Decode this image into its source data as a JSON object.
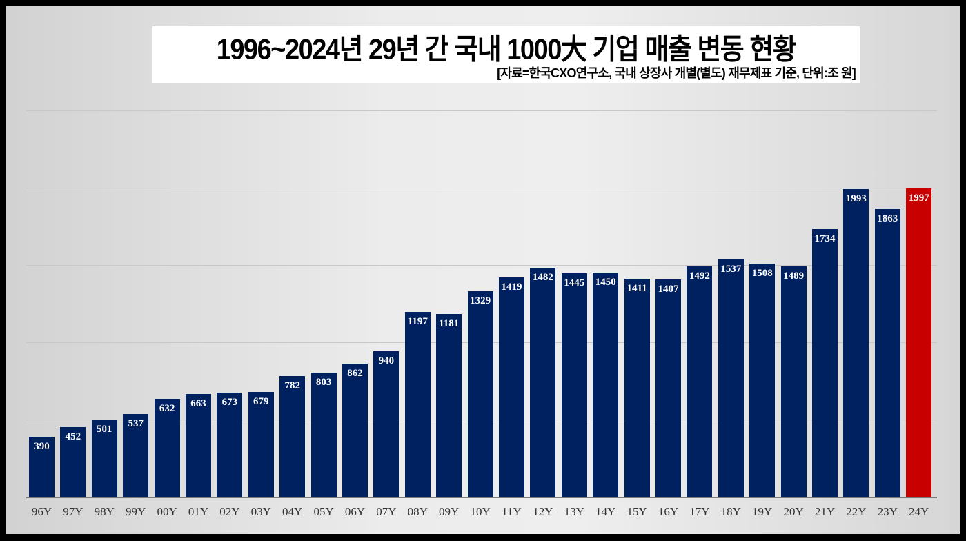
{
  "header": {
    "title": "1996~2024년 29년 간 국내 1000大 기업 매출 변동 현황",
    "subtitle": "[자료=한국CXO연구소, 국내 상장사 개별(별도) 재무제표 기준, 단위:조 원]"
  },
  "colors": {
    "bar": "#00215f",
    "highlight": "#c80000",
    "value_label": "#ffffff"
  },
  "chart_data": {
    "type": "bar",
    "title": "1996~2024년 29년 간 국내 1000大 기업 매출 변동 현황",
    "subtitle": "[자료=한국CXO연구소, 국내 상장사 개별(별도) 재무제표 기준, 단위:조 원]",
    "xlabel": "",
    "ylabel": "",
    "unit": "조 원",
    "categories": [
      "96Y",
      "97Y",
      "98Y",
      "99Y",
      "00Y",
      "01Y",
      "02Y",
      "03Y",
      "04Y",
      "05Y",
      "06Y",
      "07Y",
      "08Y",
      "09Y",
      "10Y",
      "11Y",
      "12Y",
      "13Y",
      "14Y",
      "15Y",
      "16Y",
      "17Y",
      "18Y",
      "19Y",
      "20Y",
      "21Y",
      "22Y",
      "23Y",
      "24Y"
    ],
    "values": [
      390,
      452,
      501,
      537,
      632,
      663,
      673,
      679,
      782,
      803,
      862,
      940,
      1197,
      1181,
      1329,
      1419,
      1482,
      1445,
      1450,
      1411,
      1407,
      1492,
      1537,
      1508,
      1489,
      1734,
      1993,
      1863,
      1997
    ],
    "highlight_index": 28,
    "ylim": [
      0,
      2500
    ],
    "gridlines": [
      500,
      1000,
      1500,
      2000,
      2500
    ],
    "grid": true,
    "legend": "none",
    "data_labels": true
  }
}
